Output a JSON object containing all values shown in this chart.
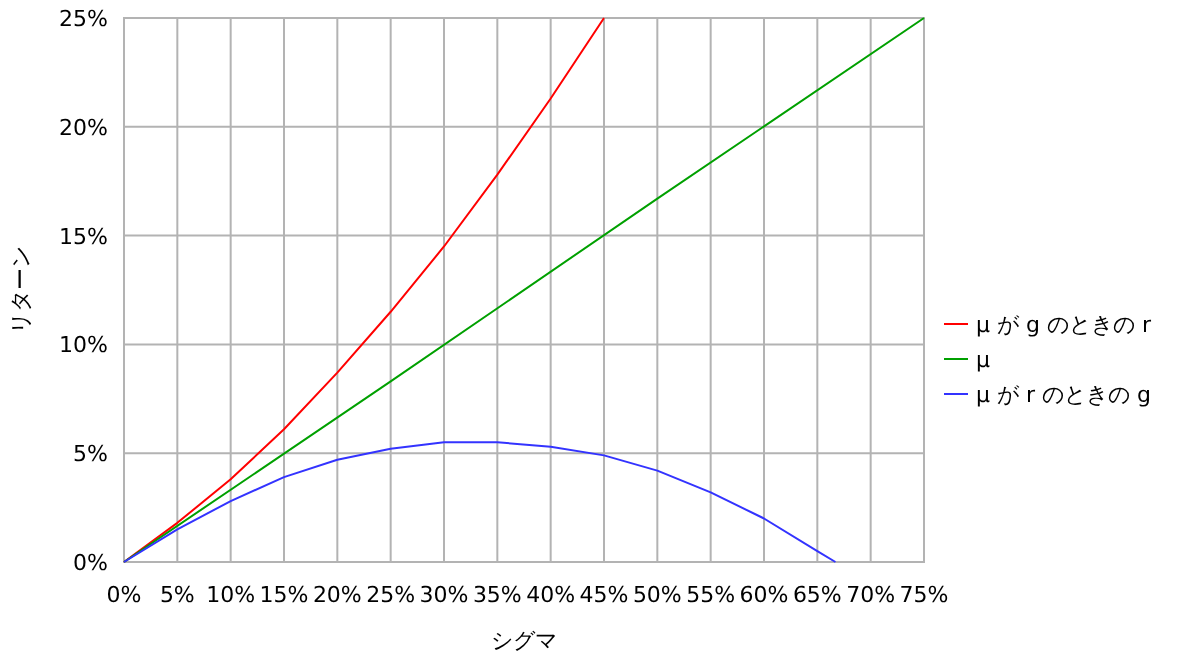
{
  "chart_data": {
    "type": "line",
    "xlabel": "シグマ",
    "ylabel": "リターン",
    "xlim": [
      0,
      75
    ],
    "ylim": [
      0,
      25
    ],
    "xticks": [
      {
        "value": 0,
        "label": "0%"
      },
      {
        "value": 5,
        "label": "5%"
      },
      {
        "value": 10,
        "label": "10%"
      },
      {
        "value": 15,
        "label": "15%"
      },
      {
        "value": 20,
        "label": "20%"
      },
      {
        "value": 25,
        "label": "25%"
      },
      {
        "value": 30,
        "label": "30%"
      },
      {
        "value": 35,
        "label": "35%"
      },
      {
        "value": 40,
        "label": "40%"
      },
      {
        "value": 45,
        "label": "45%"
      },
      {
        "value": 50,
        "label": "50%"
      },
      {
        "value": 55,
        "label": "55%"
      },
      {
        "value": 60,
        "label": "60%"
      },
      {
        "value": 65,
        "label": "65%"
      },
      {
        "value": 70,
        "label": "70%"
      },
      {
        "value": 75,
        "label": "75%"
      }
    ],
    "yticks": [
      {
        "value": 0,
        "label": "0%"
      },
      {
        "value": 5,
        "label": "5%"
      },
      {
        "value": 10,
        "label": "10%"
      },
      {
        "value": 15,
        "label": "15%"
      },
      {
        "value": 20,
        "label": "20%"
      },
      {
        "value": 25,
        "label": "25%"
      }
    ],
    "grid": true,
    "legend": "right",
    "line_style": "solid",
    "series": [
      {
        "name": "μ が g のときの r",
        "color": "#ff0000",
        "x": [
          0,
          5,
          10,
          15,
          20,
          25,
          30,
          35,
          40,
          45
        ],
        "values": [
          0,
          1.8,
          3.8,
          6.1,
          8.7,
          11.5,
          14.5,
          17.8,
          21.3,
          25
        ]
      },
      {
        "name": "μ",
        "color": "#00a000",
        "x": [
          0,
          25,
          50,
          75
        ],
        "values": [
          0,
          8.3,
          16.7,
          25
        ]
      },
      {
        "name": "μ が r のときの g",
        "color": "#3333ff",
        "x": [
          0,
          5,
          10,
          15,
          20,
          25,
          30,
          35,
          40,
          45,
          50,
          55,
          60,
          65,
          66.7
        ],
        "values": [
          0,
          1.5,
          2.8,
          3.9,
          4.7,
          5.2,
          5.5,
          5.5,
          5.3,
          4.9,
          4.2,
          3.2,
          2,
          0.5,
          0
        ]
      }
    ]
  }
}
